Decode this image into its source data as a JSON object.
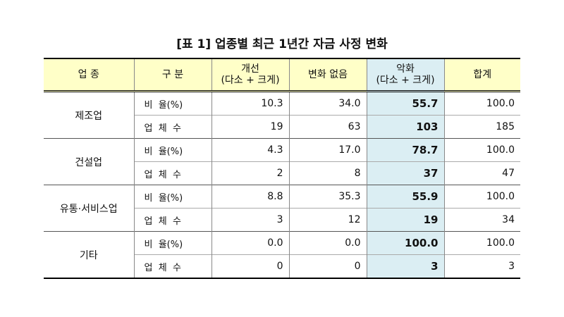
{
  "title": "[표 1] 업종별 최근 1년간 자금 사정 변화",
  "table": {
    "header": [
      [
        "업 종"
      ],
      [
        "구 분"
      ],
      [
        "개선",
        "(다소 + 크게)"
      ],
      [
        "변화 없음"
      ],
      [
        "악화",
        "(다소 + 크게)"
      ],
      [
        "합계"
      ]
    ],
    "groups": [
      {
        "name": "제조업",
        "rows": [
          {
            "label": "비  율(%)",
            "values": [
              "10.3",
              "34.0",
              "55.7",
              "100.0"
            ]
          },
          {
            "label": "업  체  수",
            "values": [
              "19",
              "63",
              "103",
              "185"
            ]
          }
        ]
      },
      {
        "name": "건설업",
        "rows": [
          {
            "label": "비  율(%)",
            "values": [
              "4.3",
              "17.0",
              "78.7",
              "100.0"
            ]
          },
          {
            "label": "업  체  수",
            "values": [
              "2",
              "8",
              "37",
              "47"
            ]
          }
        ]
      },
      {
        "name": "유통·서비스업",
        "rows": [
          {
            "label": "비  율(%)",
            "values": [
              "8.8",
              "35.3",
              "55.9",
              "100.0"
            ]
          },
          {
            "label": "업  체  수",
            "values": [
              "3",
              "12",
              "19",
              "34"
            ]
          }
        ]
      },
      {
        "name": "기타",
        "rows": [
          {
            "label": "비  율(%)",
            "values": [
              "0.0",
              "0.0",
              "100.0",
              "100.0"
            ]
          },
          {
            "label": "업  체  수",
            "values": [
              "0",
              "0",
              "3",
              "3"
            ]
          }
        ]
      }
    ]
  }
}
